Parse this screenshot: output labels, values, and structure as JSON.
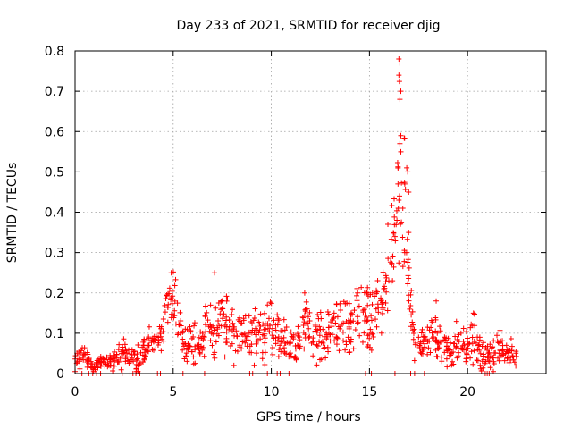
{
  "chart_data": {
    "type": "scatter",
    "title": "Day 233 of 2021, SRMTID for receiver djig",
    "xlabel": "GPS time / hours",
    "ylabel": "SRMTID / TECUs",
    "xlim": [
      0,
      24
    ],
    "ylim": [
      0,
      0.8
    ],
    "xticks": [
      0,
      5,
      10,
      15,
      20
    ],
    "xtick_labels": [
      "0",
      "5",
      "10",
      "15",
      "20"
    ],
    "yticks": [
      0,
      0.1,
      0.2,
      0.3,
      0.4,
      0.5,
      0.6,
      0.7,
      0.8
    ],
    "ytick_labels": [
      "0",
      "0.1",
      "0.2",
      "0.3",
      "0.4",
      "0.5",
      "0.6",
      "0.7",
      "0.8"
    ],
    "grid": true,
    "marker": "+",
    "color": "#ff0000",
    "envelope": {
      "x": [
        0.0,
        0.5,
        1.0,
        1.5,
        2.0,
        2.5,
        3.0,
        3.5,
        4.0,
        4.3,
        4.6,
        4.8,
        5.0,
        5.3,
        5.6,
        6.0,
        6.4,
        6.8,
        7.0,
        7.3,
        7.6,
        8.0,
        8.5,
        9.0,
        9.5,
        10.0,
        10.5,
        11.0,
        11.5,
        11.8,
        12.0,
        12.5,
        13.0,
        13.5,
        14.0,
        14.5,
        15.0,
        15.5,
        15.8,
        16.0,
        16.2,
        16.4,
        16.6,
        16.8,
        17.0,
        17.2,
        17.4,
        17.8,
        18.0,
        18.5,
        19.0,
        19.5,
        20.0,
        20.3,
        20.6,
        21.0,
        21.5,
        22.0,
        22.5
      ],
      "mean": [
        0.04,
        0.04,
        0.02,
        0.03,
        0.03,
        0.05,
        0.03,
        0.05,
        0.08,
        0.08,
        0.13,
        0.17,
        0.18,
        0.12,
        0.1,
        0.07,
        0.07,
        0.12,
        0.1,
        0.12,
        0.14,
        0.1,
        0.11,
        0.08,
        0.1,
        0.12,
        0.08,
        0.07,
        0.08,
        0.15,
        0.1,
        0.09,
        0.11,
        0.12,
        0.11,
        0.15,
        0.13,
        0.14,
        0.2,
        0.24,
        0.3,
        0.42,
        0.45,
        0.4,
        0.2,
        0.12,
        0.08,
        0.08,
        0.09,
        0.09,
        0.06,
        0.08,
        0.06,
        0.1,
        0.05,
        0.03,
        0.06,
        0.05,
        0.05
      ],
      "spread": [
        0.02,
        0.02,
        0.01,
        0.015,
        0.015,
        0.02,
        0.02,
        0.03,
        0.02,
        0.02,
        0.04,
        0.05,
        0.05,
        0.04,
        0.04,
        0.03,
        0.03,
        0.05,
        0.06,
        0.04,
        0.05,
        0.04,
        0.04,
        0.04,
        0.04,
        0.05,
        0.03,
        0.03,
        0.03,
        0.05,
        0.04,
        0.04,
        0.04,
        0.05,
        0.05,
        0.05,
        0.06,
        0.06,
        0.06,
        0.08,
        0.1,
        0.12,
        0.18,
        0.12,
        0.07,
        0.05,
        0.03,
        0.03,
        0.04,
        0.04,
        0.03,
        0.04,
        0.03,
        0.04,
        0.03,
        0.02,
        0.03,
        0.02,
        0.02
      ]
    },
    "peaks": [
      {
        "x": 4.9,
        "y": 0.25
      },
      {
        "x": 7.1,
        "y": 0.25
      },
      {
        "x": 9.8,
        "y": 0.17
      },
      {
        "x": 11.7,
        "y": 0.2
      },
      {
        "x": 14.4,
        "y": 0.2
      },
      {
        "x": 16.5,
        "y": 0.78
      },
      {
        "x": 16.55,
        "y": 0.77
      },
      {
        "x": 16.5,
        "y": 0.74
      },
      {
        "x": 16.6,
        "y": 0.7
      },
      {
        "x": 16.55,
        "y": 0.68
      },
      {
        "x": 16.6,
        "y": 0.59
      },
      {
        "x": 16.55,
        "y": 0.57
      },
      {
        "x": 16.6,
        "y": 0.55
      },
      {
        "x": 16.9,
        "y": 0.51
      },
      {
        "x": 16.95,
        "y": 0.5
      },
      {
        "x": 16.8,
        "y": 0.47
      },
      {
        "x": 17.0,
        "y": 0.45
      },
      {
        "x": 16.5,
        "y": 0.43
      },
      {
        "x": 16.7,
        "y": 0.41
      },
      {
        "x": 16.4,
        "y": 0.38
      },
      {
        "x": 17.0,
        "y": 0.35
      },
      {
        "x": 16.3,
        "y": 0.34
      },
      {
        "x": 16.8,
        "y": 0.3
      },
      {
        "x": 18.4,
        "y": 0.18
      },
      {
        "x": 20.3,
        "y": 0.15
      }
    ],
    "zero_points_x": [
      0.35,
      0.7,
      0.9,
      1.1,
      1.3,
      2.4,
      2.8,
      2.95,
      3.1,
      3.3,
      4.2,
      4.35,
      5.5,
      6.6,
      8.9,
      9.05,
      9.8,
      10.3,
      10.45,
      10.9,
      14.8,
      15.1,
      16.3,
      17.1,
      17.3,
      17.8,
      20.9,
      21.0,
      21.1
    ]
  }
}
